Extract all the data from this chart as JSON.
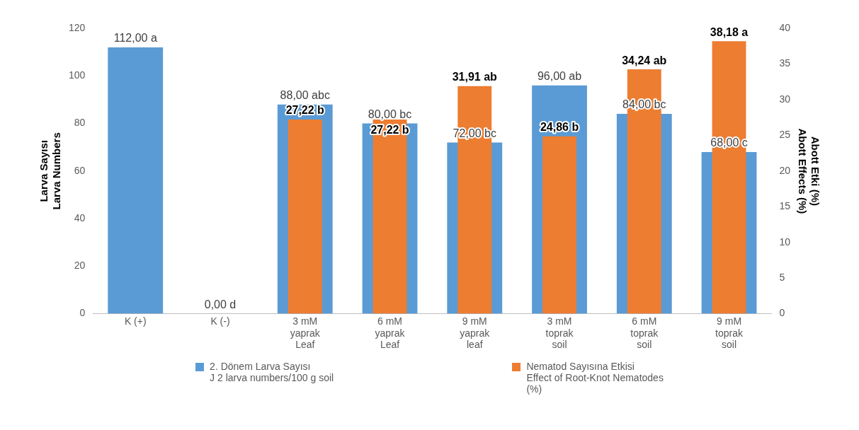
{
  "chart_data": {
    "type": "bar",
    "categories": [
      "K (+)",
      "K (-)",
      "3 mM\nyaprak\nLeaf",
      "6 mM\nyaprak\nLeaf",
      "9 mM\nyaprak\nleaf",
      "3 mM\ntoprak\nsoil",
      "6 mM\ntoprak\nsoil",
      "9 mM\ntoprak\nsoil"
    ],
    "series": [
      {
        "name": "2. Dönem Larva Sayısı\nJ 2 larva numbers/100 g soil",
        "color": "#5b9bd5",
        "values": [
          112,
          0,
          88,
          80,
          72,
          96,
          84,
          68
        ],
        "value_labels": [
          "112,00 a",
          "0,00 d",
          "88,00 abc",
          "80,00 bc",
          "72,00 bc",
          "96,00 ab",
          "84,00 bc",
          "68,00 c"
        ]
      },
      {
        "name": "Nematod Sayısına Etkisi\nEffect of Root-Knot Nematodes\n(%)",
        "color": "#ed7d31",
        "axis": "y2",
        "values": [
          null,
          null,
          27.22,
          27.22,
          31.91,
          24.86,
          34.24,
          38.18
        ],
        "value_labels": [
          null,
          null,
          "27,22 b",
          "27,22 b",
          "31,91 ab",
          "24,86 b",
          "34,24 ab",
          "38,18 a"
        ]
      }
    ],
    "ylabel": "Larva Sayısı\nLarva Numbers",
    "y2label": "Abott Etki (%)\nAbott Effects (%)",
    "ylim": [
      0,
      120
    ],
    "yticks": [
      0,
      20,
      40,
      60,
      80,
      100,
      120
    ],
    "y2lim": [
      0,
      40
    ],
    "y2ticks": [
      0,
      5,
      10,
      15,
      20,
      25,
      30,
      35,
      40
    ],
    "legend": "bottom",
    "grid": false
  }
}
